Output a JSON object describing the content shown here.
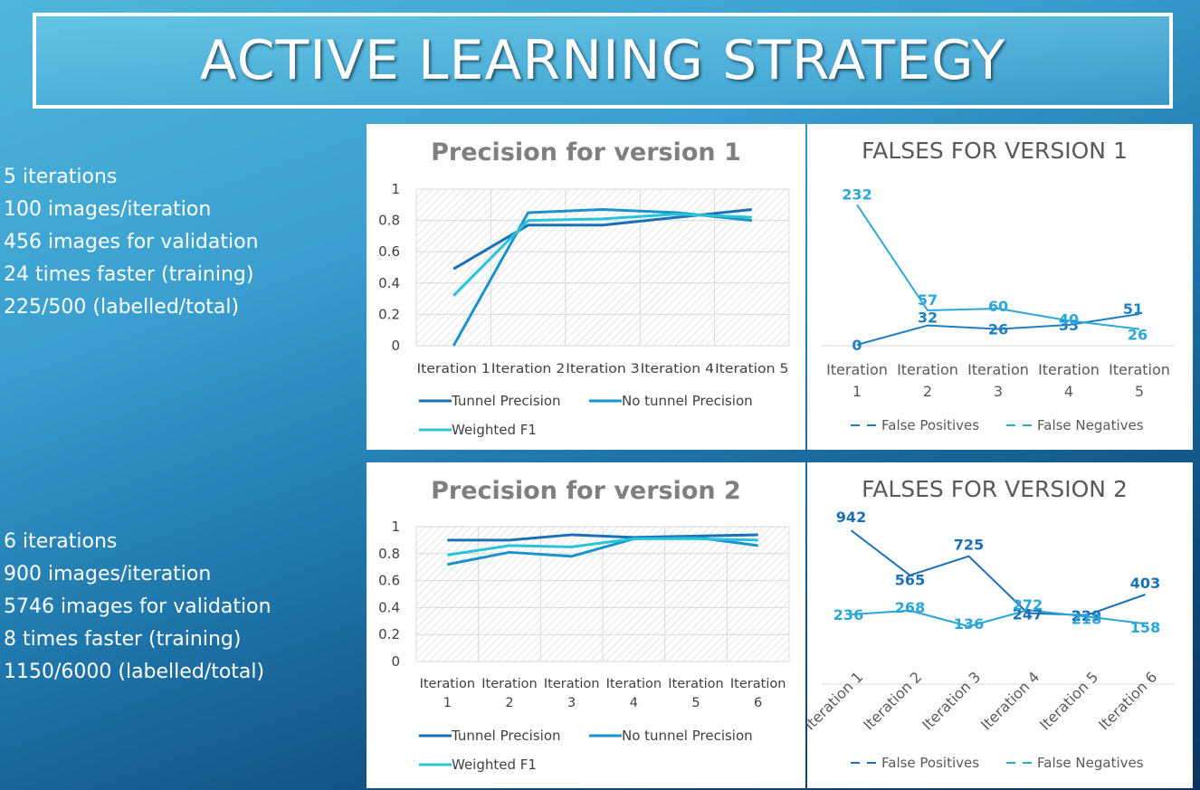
{
  "page": {
    "title": "ACTIVE LEARNING STRATEGY"
  },
  "stats_v1": [
    "5 iterations",
    "100 images/iteration",
    "456 images for validation",
    "24 times faster (training)",
    "225/500 (labelled/total)"
  ],
  "stats_v2": [
    "6 iterations",
    "900 images/iteration",
    "5746 images for validation",
    "8 times faster (training)",
    "1150/6000 (labelled/total)"
  ],
  "colors": {
    "tunnel": "#1b6fb8",
    "no_tunnel": "#1a93cc",
    "weighted_f1": "#28c4d8",
    "fp_v1": "#1f7fc2",
    "fn_v1": "#2da7d9",
    "fp_v2": "#1b6fb8",
    "fn_v2": "#2ba6d8"
  },
  "chart_data": [
    {
      "type": "line",
      "title": "Precision for version 1",
      "categories": [
        "Iteration 1",
        "Iteration 2",
        "Iteration 3",
        "Iteration 4",
        "Iteration 5"
      ],
      "ylim": [
        0,
        1
      ],
      "yticks": [
        "0",
        "0.2",
        "0.4",
        "0.6",
        "0.8",
        "1"
      ],
      "series": [
        {
          "name": "Tunnel Precision",
          "values": [
            0.49,
            0.77,
            0.77,
            0.82,
            0.87
          ]
        },
        {
          "name": "No tunnel Precision",
          "values": [
            0.0,
            0.85,
            0.87,
            0.85,
            0.8
          ]
        },
        {
          "name": "Weighted F1",
          "values": [
            0.32,
            0.8,
            0.81,
            0.84,
            0.82
          ]
        }
      ],
      "legend": "bottom"
    },
    {
      "type": "line",
      "title": "FALSES FOR VERSION 1",
      "categories": [
        "Iteration 1",
        "Iteration 2",
        "Iteration 3",
        "Iteration 4",
        "Iteration 5"
      ],
      "series": [
        {
          "name": "False Positives",
          "values": [
            0,
            32,
            26,
            33,
            51
          ]
        },
        {
          "name": "False Negatives",
          "values": [
            232,
            57,
            60,
            40,
            26
          ]
        }
      ],
      "data_labels": true,
      "legend": "bottom"
    },
    {
      "type": "line",
      "title": "Precision for version 2",
      "categories": [
        "Iteration 1",
        "Iteration 2",
        "Iteration 3",
        "Iteration 4",
        "Iteration 5",
        "Iteration 6"
      ],
      "ylim": [
        0,
        1
      ],
      "yticks": [
        "0",
        "0.2",
        "0.4",
        "0.6",
        "0.8",
        "1"
      ],
      "series": [
        {
          "name": "Tunnel Precision",
          "values": [
            0.9,
            0.9,
            0.94,
            0.92,
            0.93,
            0.94
          ]
        },
        {
          "name": "No tunnel Precision",
          "values": [
            0.72,
            0.81,
            0.78,
            0.91,
            0.92,
            0.86
          ]
        },
        {
          "name": "Weighted F1",
          "values": [
            0.79,
            0.86,
            0.85,
            0.91,
            0.91,
            0.9
          ]
        }
      ],
      "legend": "bottom"
    },
    {
      "type": "line",
      "title": "FALSES FOR VERSION 2",
      "categories": [
        "Iteration 1",
        "Iteration 2",
        "Iteration 3",
        "Iteration 4",
        "Iteration 5",
        "Iteration 6"
      ],
      "series": [
        {
          "name": "False Positives",
          "values": [
            942,
            565,
            725,
            247,
            229,
            403
          ]
        },
        {
          "name": "False Negatives",
          "values": [
            236,
            268,
            136,
            272,
            218,
            158
          ]
        }
      ],
      "data_labels": true,
      "legend": "bottom"
    }
  ]
}
